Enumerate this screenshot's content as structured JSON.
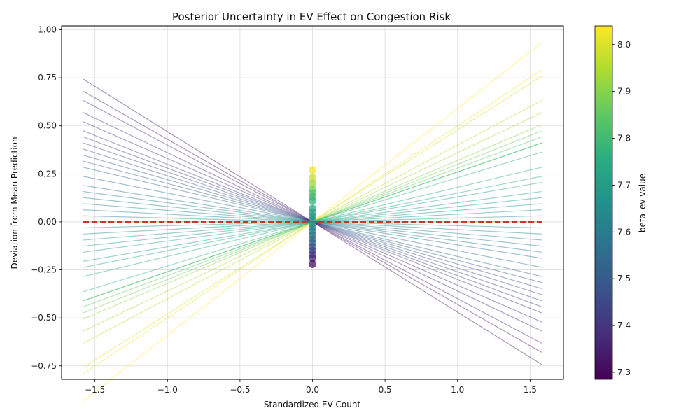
{
  "chart_data": {
    "type": "line",
    "title": "Posterior Uncertainty in EV Effect on Congestion Risk",
    "xlabel": "Standardized EV Count",
    "ylabel": "Deviation from Mean Prediction",
    "xlim": [
      -1.73,
      1.73
    ],
    "ylim": [
      -0.82,
      1.02
    ],
    "x_ticks": [
      -1.5,
      -1.0,
      -0.5,
      0.0,
      0.5,
      1.0,
      1.5
    ],
    "x_tick_labels": [
      "−1.5",
      "−1.0",
      "−0.5",
      "0.0",
      "0.5",
      "1.0",
      "1.5"
    ],
    "y_ticks": [
      -0.75,
      -0.5,
      -0.25,
      0.0,
      0.25,
      0.5,
      0.75,
      1.0
    ],
    "y_tick_labels": [
      "−0.75",
      "−0.50",
      "−0.25",
      "0.00",
      "0.25",
      "0.50",
      "0.75",
      "1.00"
    ],
    "grid": true,
    "x_range": [
      -1.58,
      1.58
    ],
    "posterior_lines": [
      {
        "beta_ev": 8.04,
        "slope": 0.59
      },
      {
        "beta_ev": 8.01,
        "slope": 0.5
      },
      {
        "beta_ev": 7.99,
        "slope": 0.48
      },
      {
        "beta_ev": 7.96,
        "slope": 0.4
      },
      {
        "beta_ev": 7.93,
        "slope": 0.36
      },
      {
        "beta_ev": 7.9,
        "slope": 0.32
      },
      {
        "beta_ev": 7.87,
        "slope": 0.3
      },
      {
        "beta_ev": 7.85,
        "slope": 0.28
      },
      {
        "beta_ev": 7.83,
        "slope": 0.26
      },
      {
        "beta_ev": 7.8,
        "slope": 0.26
      },
      {
        "beta_ev": 7.77,
        "slope": 0.23
      },
      {
        "beta_ev": 7.75,
        "slope": 0.18
      },
      {
        "beta_ev": 7.73,
        "slope": 0.15
      },
      {
        "beta_ev": 7.71,
        "slope": 0.13
      },
      {
        "beta_ev": 7.7,
        "slope": 0.1
      },
      {
        "beta_ev": 7.69,
        "slope": 0.08
      },
      {
        "beta_ev": 7.68,
        "slope": 0.06
      },
      {
        "beta_ev": 7.67,
        "slope": 0.04
      },
      {
        "beta_ev": 7.66,
        "slope": 0.02
      },
      {
        "beta_ev": 7.65,
        "slope": 0.0
      },
      {
        "beta_ev": 7.64,
        "slope": -0.02
      },
      {
        "beta_ev": 7.63,
        "slope": -0.04
      },
      {
        "beta_ev": 7.62,
        "slope": -0.06
      },
      {
        "beta_ev": 7.61,
        "slope": -0.08
      },
      {
        "beta_ev": 7.6,
        "slope": -0.1
      },
      {
        "beta_ev": 7.58,
        "slope": -0.12
      },
      {
        "beta_ev": 7.56,
        "slope": -0.15
      },
      {
        "beta_ev": 7.54,
        "slope": -0.18
      },
      {
        "beta_ev": 7.52,
        "slope": -0.2
      },
      {
        "beta_ev": 7.5,
        "slope": -0.22
      },
      {
        "beta_ev": 7.48,
        "slope": -0.24
      },
      {
        "beta_ev": 7.46,
        "slope": -0.26
      },
      {
        "beta_ev": 7.44,
        "slope": -0.28
      },
      {
        "beta_ev": 7.42,
        "slope": -0.3
      },
      {
        "beta_ev": 7.4,
        "slope": -0.33
      },
      {
        "beta_ev": 7.38,
        "slope": -0.36
      },
      {
        "beta_ev": 7.36,
        "slope": -0.4
      },
      {
        "beta_ev": 7.34,
        "slope": -0.43
      },
      {
        "beta_ev": 7.33,
        "slope": -0.47
      }
    ],
    "mean_line": {
      "y": 0.0,
      "color": "#c0392b"
    },
    "points_at_x0": [
      {
        "y": 0.27,
        "beta_ev": 8.03
      },
      {
        "y": 0.23,
        "beta_ev": 7.98
      },
      {
        "y": 0.2,
        "beta_ev": 7.93
      },
      {
        "y": 0.17,
        "beta_ev": 7.88
      },
      {
        "y": 0.15,
        "beta_ev": 7.83
      },
      {
        "y": 0.13,
        "beta_ev": 7.8
      },
      {
        "y": 0.11,
        "beta_ev": 7.78
      },
      {
        "y": 0.07,
        "beta_ev": 7.74
      },
      {
        "y": 0.05,
        "beta_ev": 7.71
      },
      {
        "y": 0.03,
        "beta_ev": 7.69
      },
      {
        "y": 0.01,
        "beta_ev": 7.67
      },
      {
        "y": -0.01,
        "beta_ev": 7.65
      },
      {
        "y": -0.03,
        "beta_ev": 7.63
      },
      {
        "y": -0.05,
        "beta_ev": 7.61
      },
      {
        "y": -0.07,
        "beta_ev": 7.59
      },
      {
        "y": -0.09,
        "beta_ev": 7.56
      },
      {
        "y": -0.11,
        "beta_ev": 7.52
      },
      {
        "y": -0.13,
        "beta_ev": 7.48
      },
      {
        "y": -0.15,
        "beta_ev": 7.44
      },
      {
        "y": -0.17,
        "beta_ev": 7.4
      },
      {
        "y": -0.19,
        "beta_ev": 7.37
      },
      {
        "y": -0.22,
        "beta_ev": 7.32
      }
    ],
    "colorbar": {
      "label": "beta_ev value",
      "range": [
        7.285,
        8.04
      ],
      "ticks": [
        7.3,
        7.4,
        7.5,
        7.6,
        7.7,
        7.8,
        7.9,
        8.0
      ],
      "tick_labels": [
        "7.3",
        "7.4",
        "7.5",
        "7.6",
        "7.7",
        "7.8",
        "7.9",
        "8.0"
      ],
      "colormap": "viridis"
    }
  }
}
